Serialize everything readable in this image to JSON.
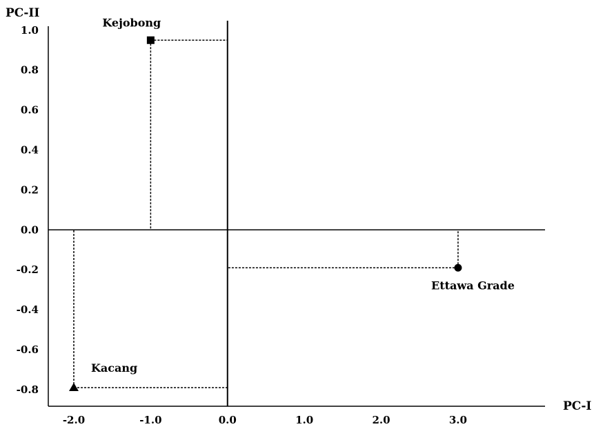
{
  "chart_data": {
    "type": "scatter",
    "title": "",
    "xlabel": "PC-I",
    "ylabel": "PC-II",
    "xlim": [
      -2.35,
      4.15
    ],
    "ylim": [
      -0.88,
      1.02
    ],
    "grid": false,
    "xticks": [
      {
        "value": -2.0,
        "label": "-2.0"
      },
      {
        "value": -1.0,
        "label": "-1.0"
      },
      {
        "value": 0.0,
        "label": "0.0"
      },
      {
        "value": 1.0,
        "label": "1.0"
      },
      {
        "value": 2.0,
        "label": "2.0"
      },
      {
        "value": 3.0,
        "label": "3.0"
      }
    ],
    "yticks": [
      {
        "value": 1.0,
        "label": "1.0"
      },
      {
        "value": 0.8,
        "label": "0.8"
      },
      {
        "value": 0.6,
        "label": "0.6"
      },
      {
        "value": 0.4,
        "label": "0.4"
      },
      {
        "value": 0.2,
        "label": "0.2"
      },
      {
        "value": 0.0,
        "label": "0.0"
      },
      {
        "value": -0.2,
        "label": "-0.2"
      },
      {
        "value": -0.4,
        "label": "-0.4"
      },
      {
        "value": -0.6,
        "label": "-0.6"
      },
      {
        "value": -0.8,
        "label": "-0.8"
      }
    ],
    "points": [
      {
        "label": "Kejobong",
        "x": -1.0,
        "y": 0.95,
        "marker": "square"
      },
      {
        "label": "Ettawa Grade",
        "x": 3.0,
        "y": -0.19,
        "marker": "circle"
      },
      {
        "label": "Kacang",
        "x": -2.0,
        "y": -0.79,
        "marker": "triangle"
      }
    ]
  }
}
